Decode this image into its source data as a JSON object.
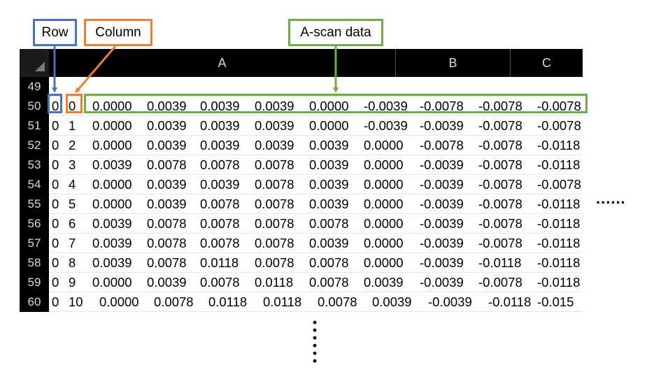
{
  "labels": {
    "row": "Row",
    "column": "Column",
    "ascan": "A-scan data"
  },
  "colors": {
    "row": "#4472c4",
    "column": "#ed7d31",
    "ascan": "#70ad47",
    "header_bg": "#000000"
  },
  "sheet": {
    "column_headers": [
      "A",
      "B",
      "C"
    ],
    "rows": [
      {
        "num": "49",
        "cells": []
      },
      {
        "num": "50",
        "cells": [
          "0",
          "0",
          "0.0000",
          "0.0039",
          "0.0039",
          "0.0039",
          "0.0000",
          "-0.0039",
          "-0.0078",
          "-0.0078",
          "-0.0078"
        ]
      },
      {
        "num": "51",
        "cells": [
          "0",
          "1",
          "0.0000",
          "0.0039",
          "0.0039",
          "0.0039",
          "0.0000",
          "-0.0039",
          "-0.0039",
          "-0.0078",
          "-0.0078"
        ]
      },
      {
        "num": "52",
        "cells": [
          "0",
          "2",
          "0.0000",
          "0.0039",
          "0.0039",
          "0.0039",
          "0.0039",
          "0.0000",
          "-0.0078",
          "-0.0078",
          "-0.0118"
        ]
      },
      {
        "num": "53",
        "cells": [
          "0",
          "3",
          "0.0039",
          "0.0078",
          "0.0078",
          "0.0078",
          "0.0039",
          "0.0000",
          "-0.0039",
          "-0.0078",
          "-0.0118"
        ]
      },
      {
        "num": "54",
        "cells": [
          "0",
          "4",
          "0.0000",
          "0.0039",
          "0.0039",
          "0.0078",
          "0.0039",
          "0.0000",
          "-0.0039",
          "-0.0078",
          "-0.0078"
        ]
      },
      {
        "num": "55",
        "cells": [
          "0",
          "5",
          "0.0000",
          "0.0039",
          "0.0078",
          "0.0078",
          "0.0039",
          "0.0000",
          "-0.0039",
          "-0.0078",
          "-0.0118"
        ]
      },
      {
        "num": "56",
        "cells": [
          "0",
          "6",
          "0.0039",
          "0.0078",
          "0.0078",
          "0.0078",
          "0.0078",
          "0.0000",
          "-0.0039",
          "-0.0078",
          "-0.0118"
        ]
      },
      {
        "num": "57",
        "cells": [
          "0",
          "7",
          "0.0039",
          "0.0078",
          "0.0078",
          "0.0078",
          "0.0039",
          "0.0000",
          "-0.0039",
          "-0.0078",
          "-0.0118"
        ]
      },
      {
        "num": "58",
        "cells": [
          "0",
          "8",
          "0.0039",
          "0.0078",
          "0.0118",
          "0.0078",
          "0.0078",
          "0.0000",
          "-0.0039",
          "-0.0118",
          "-0.0118"
        ]
      },
      {
        "num": "59",
        "cells": [
          "0",
          "9",
          "0.0000",
          "0.0039",
          "0.0078",
          "0.0118",
          "0.0078",
          "0.0039",
          "-0.0039",
          "-0.0078",
          "-0.0118"
        ]
      },
      {
        "num": "60",
        "cells": [
          "0",
          "10",
          "0.0000",
          "0.0078",
          "0.0118",
          "0.0118",
          "0.0078",
          "0.0039",
          "-0.0039",
          "-0.0118",
          "-0.015"
        ]
      }
    ]
  },
  "ellipsis": {
    "horizontal": "......"
  }
}
